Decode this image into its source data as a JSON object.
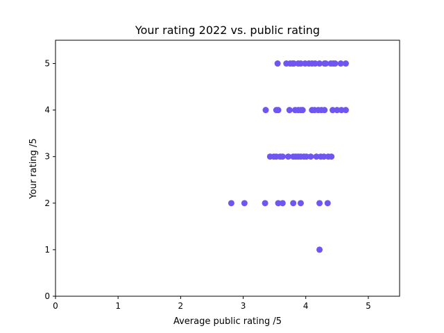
{
  "chart_data": {
    "type": "scatter",
    "title": "Your rating 2022 vs. public rating",
    "xlabel": "Average public rating /5",
    "ylabel": "Your rating /5",
    "xlim": [
      0,
      5.5
    ],
    "ylim": [
      0,
      5.5
    ],
    "x_ticks": [
      "0",
      "1",
      "2",
      "3",
      "4",
      "5"
    ],
    "y_ticks": [
      "0",
      "1",
      "2",
      "3",
      "4",
      "5"
    ],
    "grid": false,
    "marker_color": "#7055f0",
    "series": [
      {
        "points": [
          {
            "x": 3.55,
            "y": 5
          },
          {
            "x": 3.69,
            "y": 5
          },
          {
            "x": 3.75,
            "y": 5
          },
          {
            "x": 3.79,
            "y": 5
          },
          {
            "x": 3.81,
            "y": 5
          },
          {
            "x": 3.88,
            "y": 5
          },
          {
            "x": 3.92,
            "y": 5
          },
          {
            "x": 3.99,
            "y": 5
          },
          {
            "x": 4.05,
            "y": 5
          },
          {
            "x": 4.1,
            "y": 5
          },
          {
            "x": 4.15,
            "y": 5
          },
          {
            "x": 4.22,
            "y": 5
          },
          {
            "x": 4.3,
            "y": 5
          },
          {
            "x": 4.32,
            "y": 5
          },
          {
            "x": 4.4,
            "y": 5
          },
          {
            "x": 4.44,
            "y": 5
          },
          {
            "x": 4.47,
            "y": 5
          },
          {
            "x": 4.56,
            "y": 5
          },
          {
            "x": 4.64,
            "y": 5
          },
          {
            "x": 3.36,
            "y": 4
          },
          {
            "x": 3.53,
            "y": 4
          },
          {
            "x": 3.56,
            "y": 4
          },
          {
            "x": 3.74,
            "y": 4
          },
          {
            "x": 3.83,
            "y": 4
          },
          {
            "x": 3.88,
            "y": 4
          },
          {
            "x": 3.92,
            "y": 4
          },
          {
            "x": 3.95,
            "y": 4
          },
          {
            "x": 4.1,
            "y": 4
          },
          {
            "x": 4.14,
            "y": 4
          },
          {
            "x": 4.2,
            "y": 4
          },
          {
            "x": 4.25,
            "y": 4
          },
          {
            "x": 4.3,
            "y": 4
          },
          {
            "x": 4.43,
            "y": 4
          },
          {
            "x": 4.5,
            "y": 4
          },
          {
            "x": 4.57,
            "y": 4
          },
          {
            "x": 4.64,
            "y": 4
          },
          {
            "x": 3.43,
            "y": 3
          },
          {
            "x": 3.49,
            "y": 3
          },
          {
            "x": 3.53,
            "y": 3
          },
          {
            "x": 3.59,
            "y": 3
          },
          {
            "x": 3.63,
            "y": 3
          },
          {
            "x": 3.72,
            "y": 3
          },
          {
            "x": 3.8,
            "y": 3
          },
          {
            "x": 3.84,
            "y": 3
          },
          {
            "x": 3.88,
            "y": 3
          },
          {
            "x": 3.92,
            "y": 3
          },
          {
            "x": 3.97,
            "y": 3
          },
          {
            "x": 4.01,
            "y": 3
          },
          {
            "x": 4.08,
            "y": 3
          },
          {
            "x": 4.17,
            "y": 3
          },
          {
            "x": 4.24,
            "y": 3
          },
          {
            "x": 4.29,
            "y": 3
          },
          {
            "x": 4.36,
            "y": 3
          },
          {
            "x": 4.41,
            "y": 3
          },
          {
            "x": 2.81,
            "y": 2
          },
          {
            "x": 3.02,
            "y": 2
          },
          {
            "x": 3.35,
            "y": 2
          },
          {
            "x": 3.56,
            "y": 2
          },
          {
            "x": 3.63,
            "y": 2
          },
          {
            "x": 3.8,
            "y": 2
          },
          {
            "x": 3.92,
            "y": 2
          },
          {
            "x": 4.22,
            "y": 2
          },
          {
            "x": 4.35,
            "y": 2
          },
          {
            "x": 4.22,
            "y": 1
          }
        ]
      }
    ]
  }
}
